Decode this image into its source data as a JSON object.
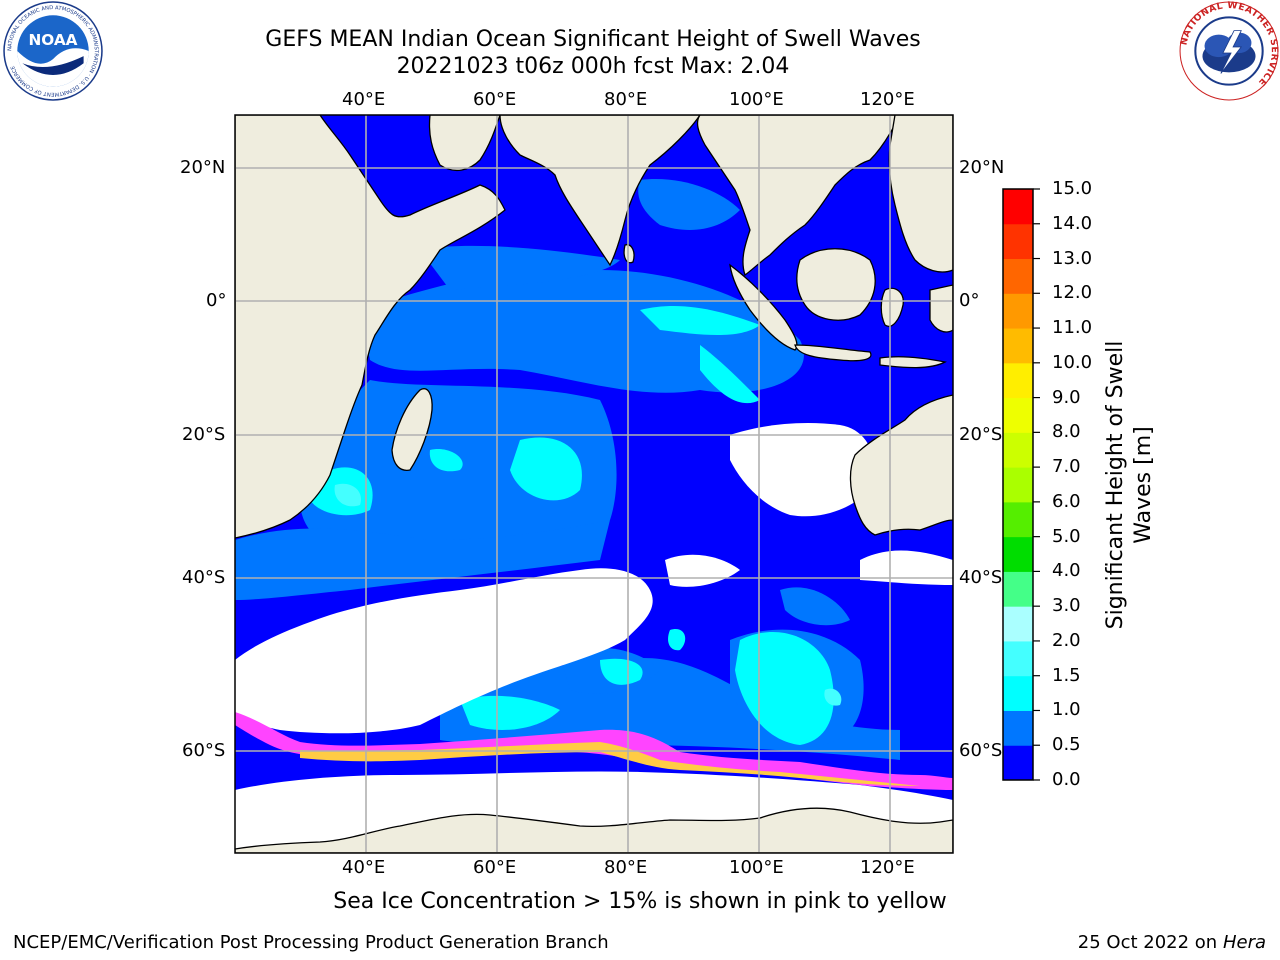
{
  "header": {
    "title_line1": "GEFS MEAN Indian Ocean Significant Height of Swell Waves",
    "title_line2": "20221023 t06z 000h fcst   Max: 2.04"
  },
  "logos": {
    "left": {
      "icon": "noaa-logo",
      "text": "NOAA",
      "ring_text": "NATIONAL OCEANIC AND ATMOSPHERIC ADMINISTRATION · U.S. DEPARTMENT OF COMMERCE"
    },
    "right": {
      "icon": "nws-logo",
      "ring_text": "NATIONAL WEATHER SERVICE"
    }
  },
  "map": {
    "lon_labels": [
      "40°E",
      "60°E",
      "80°E",
      "100°E",
      "120°E"
    ],
    "lat_labels": [
      "20°N",
      "0°",
      "20°S",
      "40°S",
      "60°S"
    ],
    "colors": {
      "land": "#efedde",
      "ocean_0": "#0000ff",
      "ocean_05": "#0077ff",
      "ocean_1": "#00ffff",
      "ocean_15": "#44ffff",
      "ice_missing": "#ffffff",
      "sea_ice_pink": "#ff44ff",
      "sea_ice_yellow": "#ffcc44",
      "grid": "#b0b0b0"
    }
  },
  "colorbar": {
    "label": "Significant Height of Swell Waves [m]",
    "ticks": [
      "15.0",
      "14.0",
      "13.0",
      "12.0",
      "11.0",
      "10.0",
      "9.0",
      "8.0",
      "7.0",
      "6.0",
      "5.0",
      "4.0",
      "3.0",
      "2.0",
      "1.5",
      "1.0",
      "0.5",
      "0.0"
    ],
    "colors": [
      "#0000ff",
      "#0077ff",
      "#00ffff",
      "#44ffff",
      "#aaffff",
      "#44ff88",
      "#00dd00",
      "#55ee00",
      "#aaff00",
      "#ccff00",
      "#eeff00",
      "#ffee00",
      "#ffbb00",
      "#ff9900",
      "#ff6600",
      "#ff3300",
      "#ff0000"
    ]
  },
  "footer": {
    "note": "Sea Ice Concentration > 15% is shown in pink to yellow",
    "credit_left": "NCEP/EMC/Verification Post Processing Product Generation Branch",
    "credit_right_date": "25 Oct 2022 on ",
    "credit_right_host": "Hera"
  }
}
